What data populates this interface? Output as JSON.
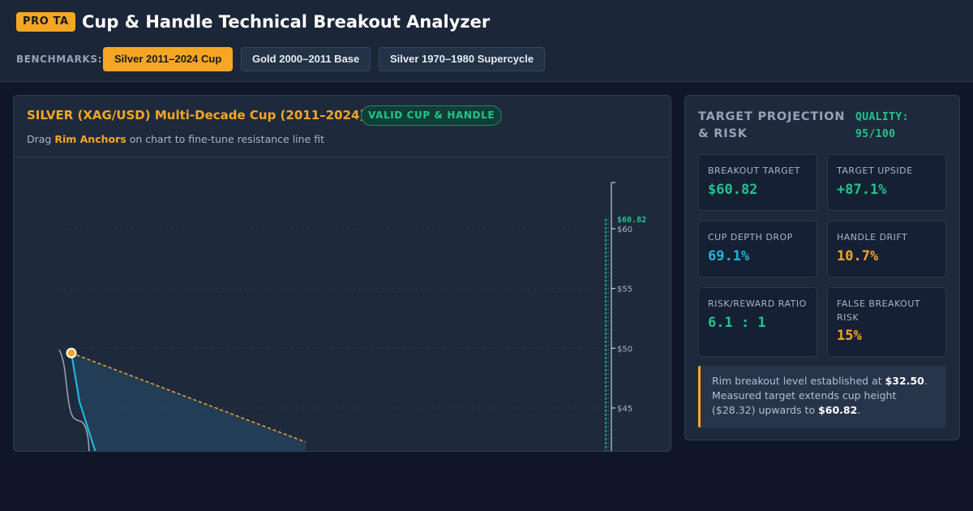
{
  "header": {
    "badge": "PRO TA",
    "title": "Cup & Handle Technical Breakout Analyzer",
    "benchmarks_label": "BENCHMARKS:",
    "benchmarks": [
      {
        "label": "Silver 2011–2024 Cup",
        "active": true
      },
      {
        "label": "Gold 2000–2011 Base",
        "active": false
      },
      {
        "label": "Silver 1970–1980 Supercycle",
        "active": false
      }
    ]
  },
  "chart_card": {
    "title": "SILVER (XAG/USD) Multi-Decade Cup (2011–2024)",
    "status": "VALID CUP & HANDLE",
    "subtitle_pre": "Drag ",
    "subtitle_hl": "Rim Anchors",
    "subtitle_post": " on chart to fine-tune resistance line fit"
  },
  "chart_data": {
    "type": "line",
    "y_ticks": [
      45,
      50,
      55,
      60
    ],
    "y_tick_labels": [
      "$45",
      "$50",
      "$55",
      "$60"
    ],
    "target_label": "$60.82",
    "target_value": 60.82,
    "rim_anchor_value": 49.6,
    "rim_line_end_value": 42.8,
    "grid": true
  },
  "side": {
    "title": "TARGET PROJECTION & RISK",
    "quality": "QUALITY: 95/100",
    "metrics": [
      {
        "label": "BREAKOUT TARGET",
        "value": "$60.82",
        "color": "#22c38e"
      },
      {
        "label": "TARGET UPSIDE",
        "value": "+87.1%",
        "color": "#22c38e"
      },
      {
        "label": "CUP DEPTH DROP",
        "value": "69.1%",
        "color": "#1fb6d9"
      },
      {
        "label": "HANDLE DRIFT",
        "value": "10.7%",
        "color": "#f5a623"
      },
      {
        "label": "RISK/REWARD RATIO",
        "value": "6.1 : 1",
        "color": "#22c38e"
      },
      {
        "label": "FALSE BREAKOUT RISK",
        "value": "15%",
        "color": "#f5a623"
      }
    ],
    "note": {
      "t1": "Rim breakout level established at ",
      "b1": "$32.50",
      "t2": ". Measured target extends cup height ($28.32) upwards to ",
      "b2": "$60.82",
      "t3": "."
    }
  }
}
